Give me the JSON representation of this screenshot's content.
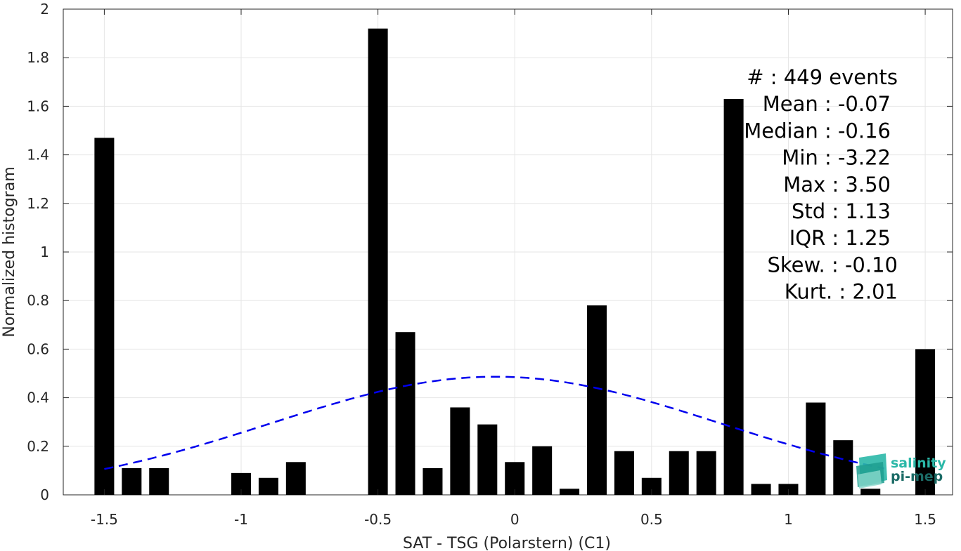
{
  "chart_data": {
    "type": "bar",
    "xlabel": "SAT - TSG (Polarstern) (C1)",
    "ylabel": "Normalized histogram",
    "xlim": [
      -1.65,
      1.6
    ],
    "ylim": [
      0,
      2
    ],
    "xticks": [
      -1.5,
      -1,
      -0.5,
      0,
      0.5,
      1,
      1.5
    ],
    "xtick_labels": [
      "-1.5",
      "-1",
      "-0.5",
      "0",
      "0.5",
      "1",
      "1.5"
    ],
    "yticks": [
      0,
      0.2,
      0.4,
      0.6,
      0.8,
      1,
      1.2,
      1.4,
      1.6,
      1.8,
      2
    ],
    "ytick_labels": [
      "0",
      "0.2",
      "0.4",
      "0.6",
      "0.8",
      "1",
      "1.2",
      "1.4",
      "1.6",
      "1.8",
      "2"
    ],
    "grid": true,
    "bin_width": 0.1,
    "bar_color": "#000000",
    "x": [
      -1.5,
      -1.4,
      -1.3,
      -1.2,
      -1.1,
      -1.0,
      -0.9,
      -0.8,
      -0.7,
      -0.6,
      -0.5,
      -0.4,
      -0.3,
      -0.2,
      -0.1,
      0.0,
      0.1,
      0.2,
      0.3,
      0.4,
      0.5,
      0.6,
      0.7,
      0.8,
      0.9,
      1.0,
      1.1,
      1.2,
      1.3,
      1.4,
      1.5
    ],
    "values": [
      1.47,
      0.11,
      0.11,
      0,
      0,
      0.09,
      0.07,
      0.135,
      0,
      0,
      1.92,
      0.67,
      0.11,
      0.36,
      0.29,
      0.135,
      0.2,
      0.025,
      0.78,
      0.18,
      0.07,
      0.18,
      0.18,
      1.63,
      0.045,
      0.045,
      0.38,
      0.225,
      0.025,
      0,
      0.6
    ],
    "fit": {
      "type": "normal",
      "mean": -0.07,
      "std": 0.82,
      "x_range": [
        -1.5,
        1.35
      ],
      "color": "#0000ee",
      "style": "dashed"
    },
    "annotations": [
      "#  : 449 events",
      "Mean : -0.07",
      "Median : -0.16",
      "Min : -3.22",
      "Max : 3.50",
      "Std : 1.13",
      "IQR : 1.25",
      "Skew. : -0.10",
      "Kurt. : 2.01"
    ]
  },
  "logo": {
    "line1": "salinity",
    "line2": "pi-mep",
    "color1": "#2bb8a8",
    "color2": "#1b6b66"
  }
}
